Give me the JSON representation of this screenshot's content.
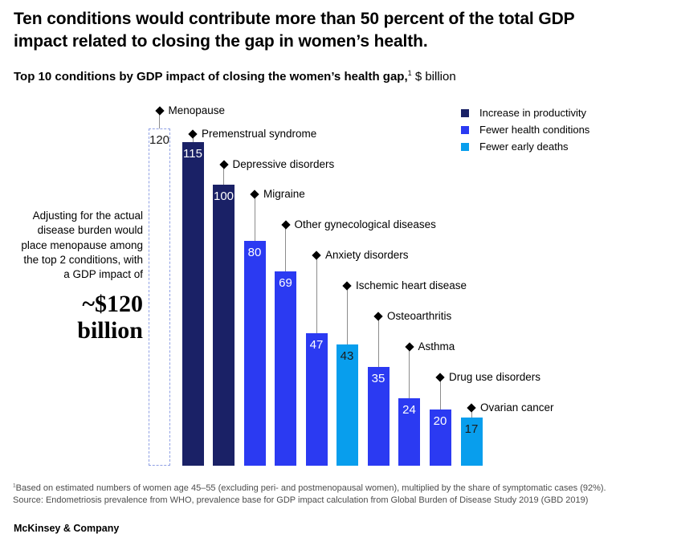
{
  "header": {
    "title": "Ten conditions would contribute more than 50 percent of the total GDP impact related to closing the gap in women’s health.",
    "subtitle_bold": "Top 10 conditions by GDP impact of closing the women’s health gap,",
    "subtitle_sup": "1",
    "subtitle_regular": "$ billion"
  },
  "legend": {
    "items": [
      {
        "label": "Increase in productivity",
        "color": "#1A2166"
      },
      {
        "label": "Fewer health conditions",
        "color": "#2B3AF2"
      },
      {
        "label": "Fewer early deaths",
        "color": "#089EED"
      }
    ]
  },
  "annotation": {
    "text": "Adjusting for the actual disease burden would place menopause among the top 2 conditions, with a GDP impact of",
    "highlight": "~$120 billion"
  },
  "chart_data": {
    "type": "bar",
    "title": "Top 10 conditions by GDP impact of closing the women’s health gap, $ billion",
    "unit": "$ billion",
    "ylim": [
      0,
      120
    ],
    "grid": false,
    "legend_position": "top-right",
    "series_colors": {
      "Increase in productivity": "#1A2166",
      "Fewer health conditions": "#2B3AF2",
      "Fewer early deaths": "#089EED"
    },
    "dashed_outline_color": "#8FA0E4",
    "bars": [
      {
        "label": "Menopause",
        "value": 120,
        "series": null,
        "style": "dashed-outline"
      },
      {
        "label": "Premenstrual syndrome",
        "value": 115,
        "series": "Increase in productivity"
      },
      {
        "label": "Depressive disorders",
        "value": 100,
        "series": "Increase in productivity"
      },
      {
        "label": "Migraine",
        "value": 80,
        "series": "Fewer health conditions"
      },
      {
        "label": "Other gynecological diseases",
        "value": 69,
        "series": "Fewer health conditions"
      },
      {
        "label": "Anxiety disorders",
        "value": 47,
        "series": "Fewer health conditions"
      },
      {
        "label": "Ischemic heart disease",
        "value": 43,
        "series": "Fewer early deaths"
      },
      {
        "label": "Osteoarthritis",
        "value": 35,
        "series": "Fewer health conditions"
      },
      {
        "label": "Asthma",
        "value": 24,
        "series": "Fewer health conditions"
      },
      {
        "label": "Drug use disorders",
        "value": 20,
        "series": "Fewer health conditions"
      },
      {
        "label": "Ovarian cancer",
        "value": 17,
        "series": "Fewer early deaths"
      }
    ]
  },
  "footnote": {
    "sup": "1",
    "line1": "Based on estimated numbers of women age 45–55 (excluding peri- and postmenopausal women), multiplied by the share of symptomatic cases (92%).",
    "line2": "Source: Endometriosis prevalence from WHO, prevalence base for GDP impact calculation from Global Burden of Disease Study 2019 (GBD 2019)"
  },
  "footer": {
    "brand": "McKinsey & Company"
  }
}
